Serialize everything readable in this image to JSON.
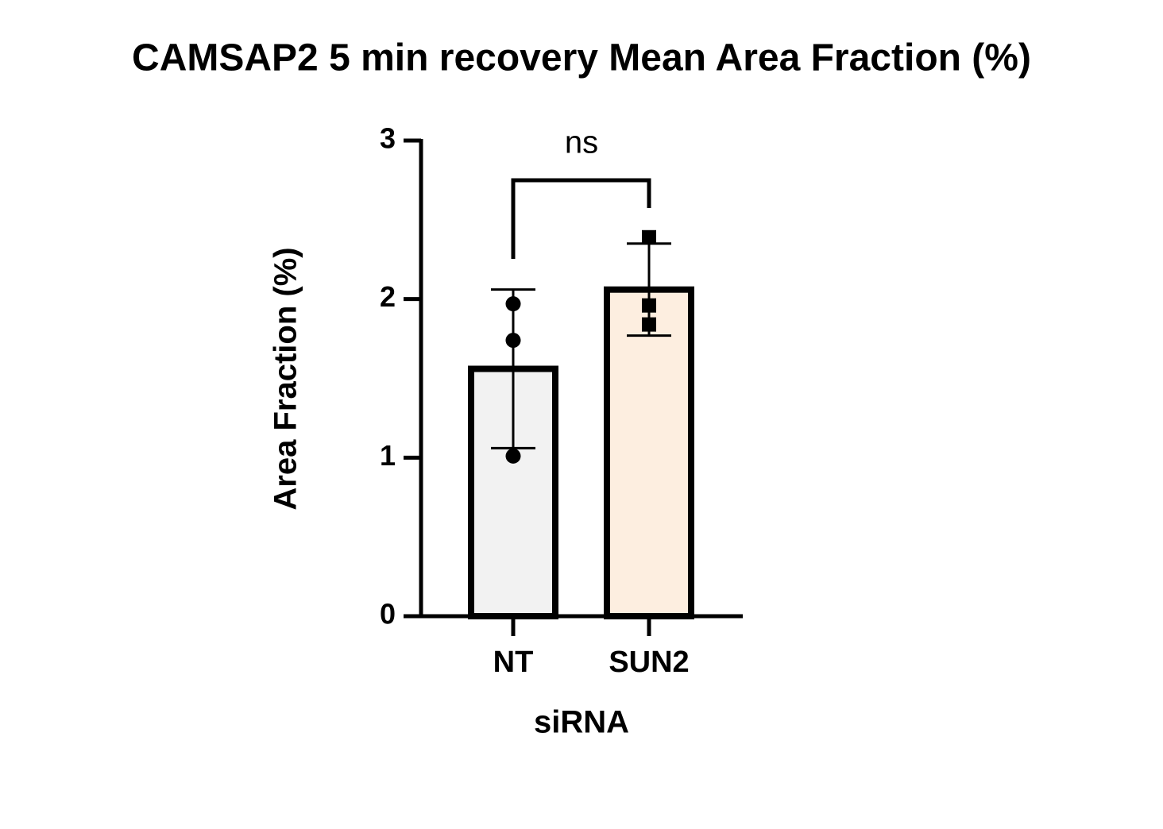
{
  "chart_data": {
    "type": "bar",
    "title": "CAMSAP2 5 min recovery Mean Area Fraction (%)",
    "x_label": "siRNA",
    "y_label": "Area Fraction (%)",
    "categories": [
      "NT",
      "SUN2"
    ],
    "values": [
      1.56,
      2.06
    ],
    "errors": [
      0.5,
      0.29
    ],
    "colors": [
      "#f2f2f2",
      "#fdeee0"
    ],
    "points": [
      [
        1.97,
        1.74,
        1.01
      ],
      [
        2.39,
        1.96,
        1.84
      ]
    ],
    "point_markers": [
      "circle",
      "square"
    ],
    "significance": "ns",
    "ylim": [
      0,
      3
    ],
    "yticks": [
      0,
      1,
      2,
      3
    ]
  }
}
